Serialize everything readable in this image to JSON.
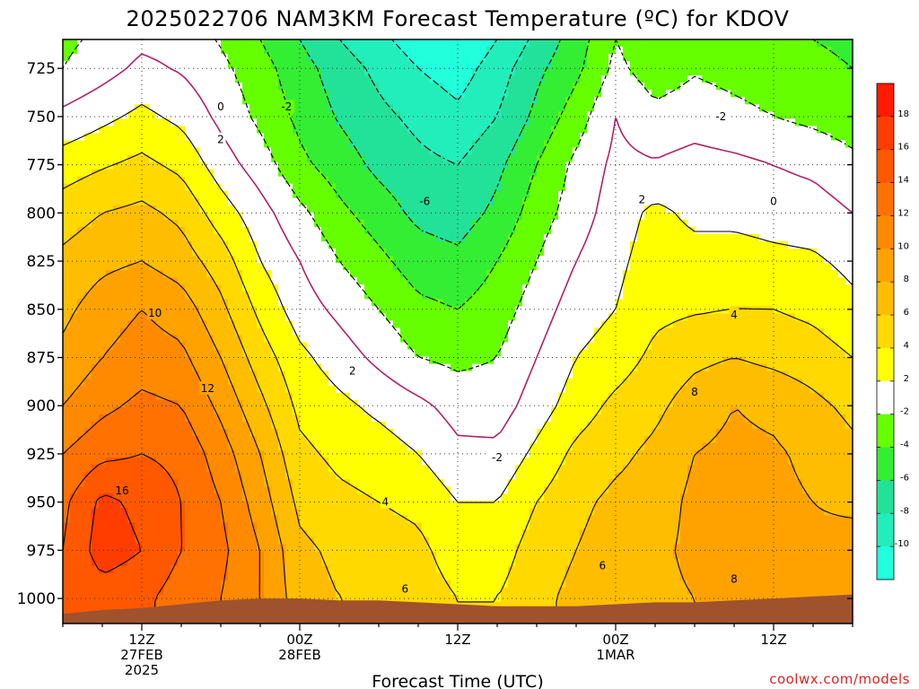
{
  "chart_data": {
    "type": "heatmap",
    "title": "2025022706 NAM3KM Forecast Temperature (ºC) for KDOV",
    "xlabel": "Forecast Time (UTC)",
    "ylabel": "",
    "x_ticks": [
      {
        "hour": 12,
        "lines": [
          "12Z",
          "27FEB",
          "2025"
        ]
      },
      {
        "hour": 24,
        "lines": [
          "00Z",
          "28FEB"
        ]
      },
      {
        "hour": 36,
        "lines": [
          "12Z"
        ]
      },
      {
        "hour": 48,
        "lines": [
          "00Z",
          "1MAR"
        ]
      },
      {
        "hour": 60,
        "lines": [
          "12Z"
        ]
      }
    ],
    "xlim_hours": [
      6,
      66
    ],
    "y_ticks": [
      {
        "p": 725,
        "label": "725"
      },
      {
        "p": 750,
        "label": "750"
      },
      {
        "p": 775,
        "label": "775"
      },
      {
        "p": 800,
        "label": "800"
      },
      {
        "p": 825,
        "label": "825"
      },
      {
        "p": 850,
        "label": "850"
      },
      {
        "p": 875,
        "label": "875"
      },
      {
        "p": 900,
        "label": "900"
      },
      {
        "p": 925,
        "label": "925"
      },
      {
        "p": 950,
        "label": "950"
      },
      {
        "p": 975,
        "label": "975"
      },
      {
        "p": 1000,
        "label": "1000"
      }
    ],
    "ylim_hpa": [
      1013,
      710
    ],
    "grid": true,
    "colorbar": {
      "labels": [
        "18",
        "16",
        "14",
        "12",
        "10",
        "8",
        "6",
        "4",
        "2",
        "-2",
        "-4",
        "-6",
        "-8",
        "-10"
      ],
      "levels": [
        {
          "lo": 18,
          "hi": 20,
          "color": "#ff1a00"
        },
        {
          "lo": 16,
          "hi": 18,
          "color": "#ff3d00"
        },
        {
          "lo": 14,
          "hi": 16,
          "color": "#ff5800"
        },
        {
          "lo": 12,
          "hi": 14,
          "color": "#ff7100"
        },
        {
          "lo": 10,
          "hi": 12,
          "color": "#ff8a00"
        },
        {
          "lo": 8,
          "hi": 10,
          "color": "#ffa200"
        },
        {
          "lo": 6,
          "hi": 8,
          "color": "#ffbd00"
        },
        {
          "lo": 4,
          "hi": 6,
          "color": "#ffd900"
        },
        {
          "lo": 2,
          "hi": 4,
          "color": "#ffff00"
        },
        {
          "lo": -2,
          "hi": 2,
          "color": "#ffffff"
        },
        {
          "lo": -4,
          "hi": -2,
          "color": "#66ff00"
        },
        {
          "lo": -6,
          "hi": -4,
          "color": "#33ee33"
        },
        {
          "lo": -8,
          "hi": -6,
          "color": "#22e299"
        },
        {
          "lo": -10,
          "hi": -8,
          "color": "#22eebb"
        },
        {
          "lo": -12,
          "hi": -10,
          "color": "#22ffdd"
        }
      ]
    },
    "temperature_grid": {
      "hours": [
        6,
        9,
        12,
        15,
        18,
        21,
        24,
        27,
        30,
        33,
        36,
        39,
        42,
        45,
        48,
        51,
        54,
        57,
        60,
        63,
        66
      ],
      "pressure_hpa": [
        710,
        725,
        750,
        775,
        800,
        825,
        850,
        875,
        900,
        925,
        950,
        975,
        1000,
        1013
      ],
      "values": [
        [
          -2.5,
          -1.5,
          -0.5,
          -0.8,
          -2.2,
          -4,
          -6,
          -8,
          -9.5,
          -11,
          -12,
          -10,
          -7.5,
          -5,
          -2,
          -3.5,
          -2.8,
          -3.2,
          -3.6,
          -4,
          -4.5
        ],
        [
          -2,
          -0.8,
          0.5,
          -0.2,
          -1.5,
          -3.2,
          -5.2,
          -7,
          -8.5,
          -10,
          -11,
          -9,
          -6.5,
          -4.5,
          -1.5,
          -3,
          -2.2,
          -2.6,
          -3,
          -3.4,
          -4
        ],
        [
          0.5,
          1.5,
          2.5,
          1.5,
          -0.5,
          -2.5,
          -4.5,
          -6.2,
          -7.5,
          -8.5,
          -9.5,
          -8,
          -5.5,
          -3,
          0,
          -1.5,
          -1,
          -1.5,
          -2,
          -2.5,
          -3
        ],
        [
          3,
          3.8,
          4.5,
          3.5,
          1,
          -1,
          -3.5,
          -5,
          -6.5,
          -7.5,
          -8,
          -6.5,
          -4,
          -1.5,
          0.5,
          0.2,
          0.8,
          0.5,
          0,
          -0.5,
          -1.5
        ],
        [
          5,
          6,
          6.5,
          5.5,
          3,
          0.8,
          -1.5,
          -3.5,
          -5,
          -6.5,
          -7,
          -5.5,
          -3,
          -1,
          1,
          2.5,
          1.5,
          1.5,
          1.2,
          1,
          0
        ],
        [
          6.5,
          7.5,
          8,
          7,
          5,
          2,
          0,
          -2,
          -3.5,
          -5,
          -5.5,
          -4,
          -2,
          0,
          1.5,
          3,
          2.8,
          2.8,
          2.5,
          2.3,
          1.5
        ],
        [
          7.5,
          9,
          10,
          9,
          6.5,
          3.5,
          1,
          -0.5,
          -2,
          -3.5,
          -4,
          -3,
          -1,
          1,
          2,
          3.5,
          3.8,
          4,
          4,
          3.5,
          2.5
        ],
        [
          8.5,
          10,
          11,
          10.5,
          8,
          5,
          2.5,
          1,
          -0.5,
          -2,
          -2.5,
          -2,
          0,
          2,
          3,
          4.5,
          5.5,
          6,
          5.5,
          5,
          4
        ],
        [
          10,
          11.5,
          12.5,
          12,
          9.5,
          6.5,
          3.5,
          2.5,
          1.5,
          0.5,
          -0.8,
          -1,
          1,
          3,
          4.5,
          5.5,
          7,
          8,
          7.5,
          6.5,
          5.5
        ],
        [
          12,
          13.5,
          14,
          13.5,
          11,
          8,
          4.5,
          3.5,
          3,
          2,
          0.5,
          0.5,
          2.5,
          4.5,
          5.5,
          6.5,
          8,
          8.5,
          8.3,
          7.5,
          6.5
        ],
        [
          13.5,
          16.5,
          15.5,
          14,
          12,
          9,
          5.5,
          4.5,
          4,
          3.5,
          2,
          2,
          4,
          5.5,
          6.5,
          7,
          8.5,
          9,
          8.5,
          8,
          7.5
        ],
        [
          14,
          17,
          16,
          14,
          12.5,
          10,
          6.5,
          5.5,
          5,
          4.5,
          3,
          3,
          5,
          6,
          7,
          7.5,
          8.5,
          8.5,
          8.3,
          8.5,
          9
        ],
        [
          14,
          15,
          14.5,
          13,
          12,
          10,
          7,
          6,
          6,
          5,
          4,
          4,
          5.5,
          6.5,
          7,
          7.5,
          8,
          8,
          8,
          8.5,
          9.5
        ],
        [
          14,
          15,
          14.5,
          13,
          12,
          10,
          7,
          6,
          6,
          5,
          4,
          4,
          5.5,
          6.5,
          7,
          7.5,
          8,
          8,
          8,
          8.5,
          9.5
        ]
      ]
    },
    "surface_pressure_hpa": [
      1008,
      1006,
      1005,
      1003,
      1001,
      1000,
      1000,
      1001,
      1001,
      1002,
      1003,
      1004,
      1004,
      1004,
      1003,
      1002,
      1002,
      1001,
      1000,
      999,
      998
    ],
    "contour_lines": [
      {
        "value": 0,
        "label": "0",
        "label_hour": 18,
        "label_p": 745
      },
      {
        "value": -2,
        "label": "-2",
        "label_hour": 23,
        "label_p": 745
      },
      {
        "value": 2,
        "label": "2",
        "label_hour": 18,
        "label_p": 762
      },
      {
        "value": -6,
        "label": "-6",
        "label_hour": 33.5,
        "label_p": 794
      },
      {
        "value": 10,
        "label": "10",
        "label_hour": 13,
        "label_p": 852
      },
      {
        "value": 12,
        "label": "12",
        "label_hour": 17,
        "label_p": 891
      },
      {
        "value": 2,
        "label": "2",
        "label_hour": 28,
        "label_p": 882
      },
      {
        "value": 16,
        "label": "16",
        "label_hour": 10.5,
        "label_p": 944
      },
      {
        "value": 4,
        "label": "4",
        "label_hour": 30.5,
        "label_p": 950
      },
      {
        "value": 6,
        "label": "6",
        "label_hour": 32,
        "label_p": 995
      },
      {
        "value": -2,
        "label": "-2",
        "label_hour": 39,
        "label_p": 927
      },
      {
        "value": 6,
        "label": "6",
        "label_hour": 47,
        "label_p": 983
      },
      {
        "value": 8,
        "label": "8",
        "label_hour": 54,
        "label_p": 893
      },
      {
        "value": 8,
        "label": "8",
        "label_hour": 57,
        "label_p": 990
      },
      {
        "value": 4,
        "label": "4",
        "label_hour": 57,
        "label_p": 853
      },
      {
        "value": 2,
        "label": "2",
        "label_hour": 50,
        "label_p": 793
      },
      {
        "value": 0,
        "label": "0",
        "label_hour": 60,
        "label_p": 794
      },
      {
        "value": -2,
        "label": "-2",
        "label_hour": 56,
        "label_p": 750
      }
    ],
    "colors": {
      "ground": "#a0522d",
      "axes": "#000000",
      "grid": "#333333",
      "zero_isotherm": "#b0206a",
      "credit": "#e02020"
    }
  },
  "credit": "coolwx.com/models"
}
